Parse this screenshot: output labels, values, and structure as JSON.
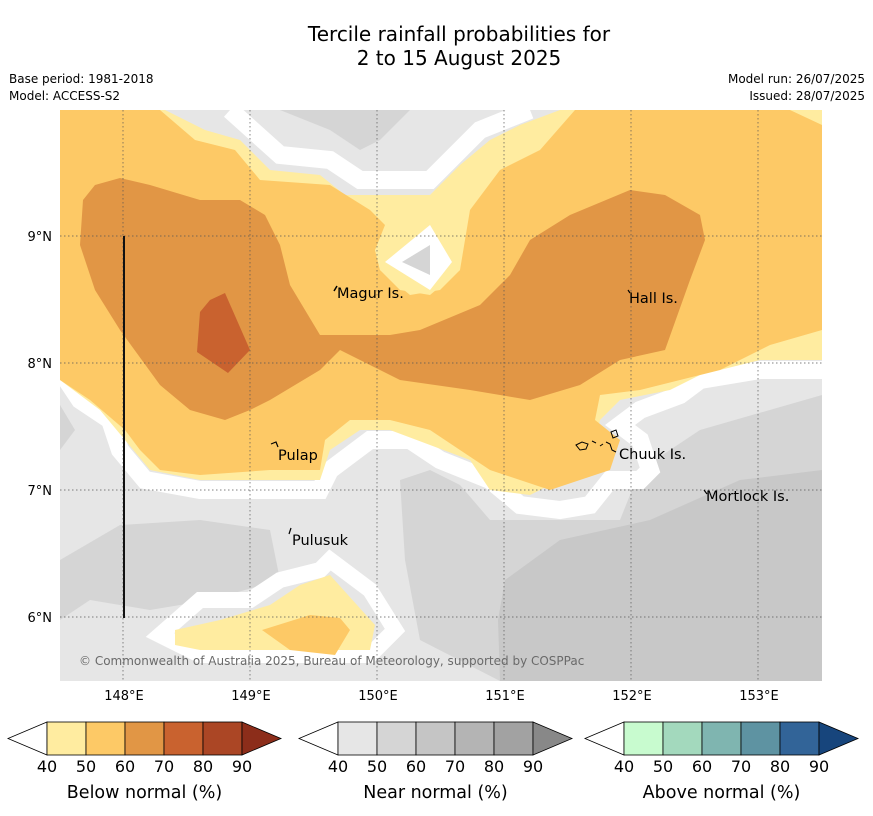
{
  "title_line1": "Tercile rainfall probabilities for",
  "title_line2": "2 to 15 August 2025",
  "meta_left": [
    "Base period: 1981-2018",
    "Model: ACCESS-S2"
  ],
  "meta_right": [
    "Model run: 26/07/2025",
    "Issued: 28/07/2025"
  ],
  "map": {
    "lat_ticks": [
      "9°N",
      "8°N",
      "7°N",
      "6°N"
    ],
    "lon_ticks": [
      "148°E",
      "149°E",
      "150°E",
      "151°E",
      "152°E",
      "153°E"
    ],
    "places": [
      "Magur Is.",
      "Hall Is.",
      "Pulap",
      "Chuuk Is.",
      "Mortlock Is.",
      "Pulusuk"
    ],
    "copyright": "© Commonwealth of Australia 2025, Bureau of Meteorology, supported by COSPPac"
  },
  "colorbars": [
    {
      "label": "Below normal (%)",
      "ticks": [
        "40",
        "50",
        "60",
        "70",
        "80",
        "90"
      ],
      "colors": [
        "#ffeca0",
        "#fdc966",
        "#e19645",
        "#c9622f",
        "#ab4625",
        "#8c2d1a"
      ]
    },
    {
      "label": "Near normal (%)",
      "ticks": [
        "40",
        "50",
        "60",
        "70",
        "80",
        "90"
      ],
      "colors": [
        "#e6e6e6",
        "#d5d5d5",
        "#c5c5c5",
        "#b4b4b4",
        "#a2a2a2",
        "#888888"
      ]
    },
    {
      "label": "Above normal (%)",
      "ticks": [
        "40",
        "50",
        "60",
        "70",
        "80",
        "90"
      ],
      "colors": [
        "#c8fbcf",
        "#a3d9bd",
        "#7fb5b0",
        "#5e93a2",
        "#326498",
        "#17457c"
      ]
    }
  ]
}
